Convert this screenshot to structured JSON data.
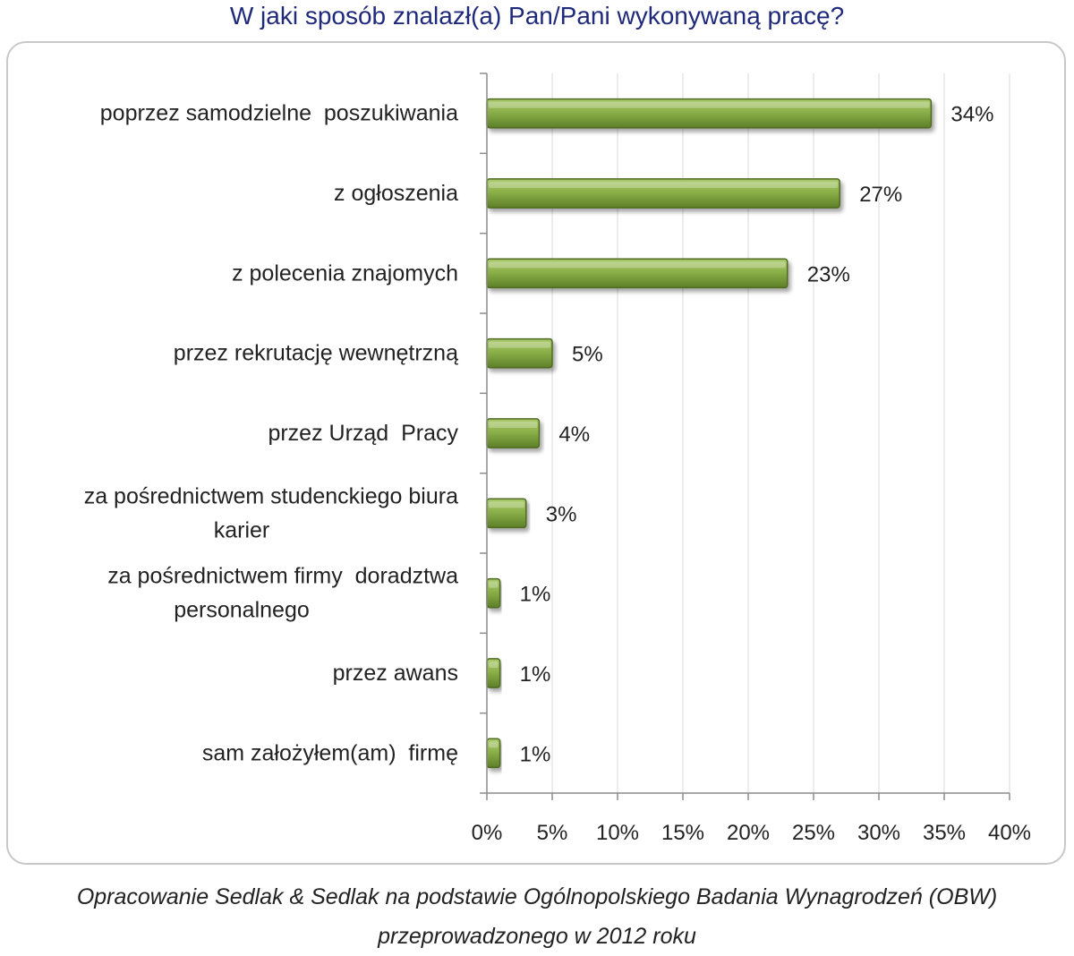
{
  "title": "W jaki sposób znalazł(a) Pan/Pani wykonywaną pracę?",
  "footer": {
    "line1": "Opracowanie Sedlak & Sedlak na podstawie Ogólnopolskiego Badania Wynagrodzeń (OBW)",
    "line2": "przeprowadzonego  w 2012 roku"
  },
  "colors": {
    "bar": "#8cb049",
    "bar_dark": "#4f6b22",
    "grid": "#d9d9d9",
    "axis": "#8c8c8c",
    "title": "#1f2a7a"
  },
  "chart_data": {
    "type": "bar",
    "orientation": "horizontal",
    "categories": [
      [
        "poprzez samodzielne  poszukiwania"
      ],
      [
        "z ogłoszenia"
      ],
      [
        "z polecenia znajomych"
      ],
      [
        "przez rekrutację wewnętrzną"
      ],
      [
        "przez Urząd  Pracy"
      ],
      [
        "za pośrednictwem studenckiego biura",
        "karier"
      ],
      [
        "za pośrednictwem firmy  doradztwa",
        "personalnego"
      ],
      [
        "przez awans"
      ],
      [
        "sam założyłem(am)  firmę"
      ]
    ],
    "values": [
      34,
      27,
      23,
      5,
      4,
      3,
      1,
      1,
      1
    ],
    "data_labels": [
      "34%",
      "27%",
      "23%",
      "5%",
      "4%",
      "3%",
      "1%",
      "1%",
      "1%"
    ],
    "xlim": [
      0,
      40
    ],
    "x_ticks": [
      0,
      5,
      10,
      15,
      20,
      25,
      30,
      35,
      40
    ],
    "x_tick_labels": [
      "0%",
      "5%",
      "10%",
      "15%",
      "20%",
      "25%",
      "30%",
      "35%",
      "40%"
    ],
    "grid": true,
    "legend": "none",
    "xlabel": "",
    "ylabel": ""
  }
}
